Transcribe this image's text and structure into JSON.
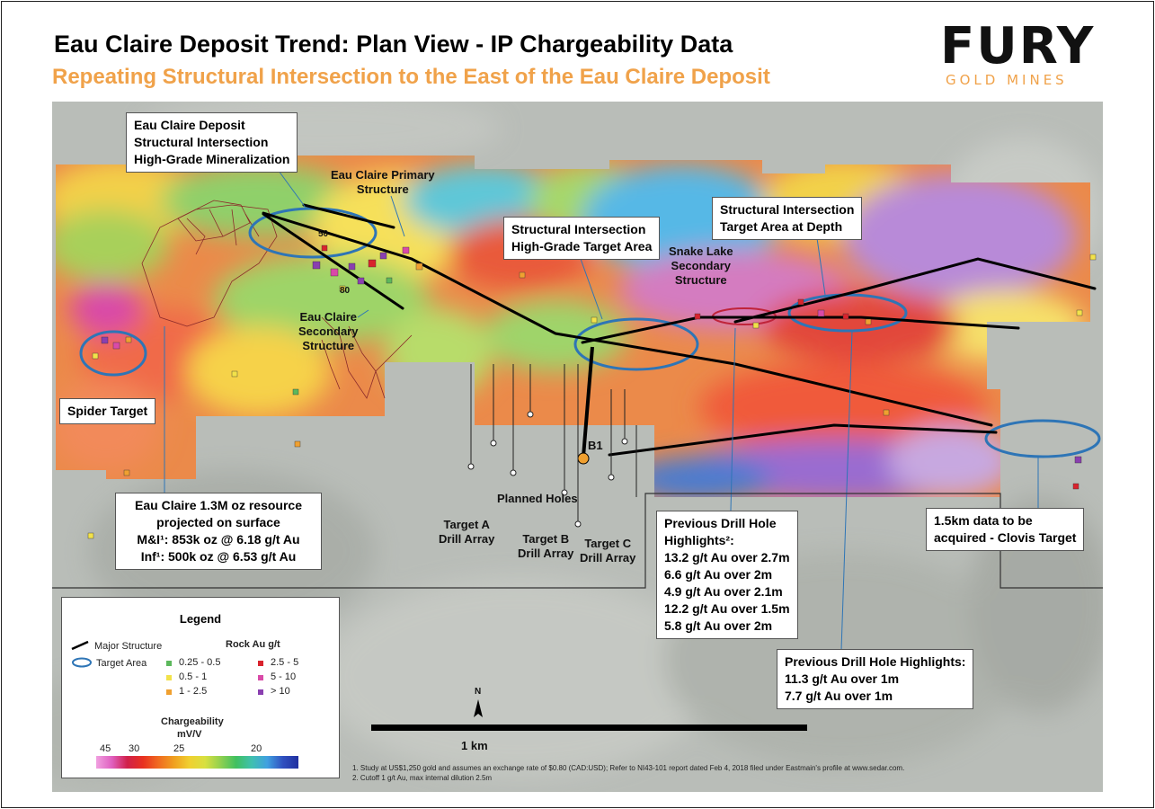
{
  "header": {
    "title": "Eau Claire Deposit Trend: Plan View - IP Chargeability Data",
    "subtitle": "Repeating Structural Intersection to the East of the Eau Claire Deposit"
  },
  "logo": {
    "word": "FURY",
    "sub": "GOLD MINES"
  },
  "callouts": {
    "deposit": [
      "Eau Claire Deposit",
      "Structural Intersection",
      "High-Grade Mineralization"
    ],
    "structural_intersection": [
      "Structural Intersection",
      "High-Grade Target Area"
    ],
    "depth": [
      "Structural Intersection",
      "Target Area at Depth"
    ],
    "spider": "Spider Target",
    "resource": [
      "Eau Claire 1.3M oz resource",
      "projected on surface",
      "M&I¹: 853k oz @ 6.18 g/t Au",
      "Inf¹: 500k oz @ 6.53 g/t Au"
    ],
    "drill1": [
      "Previous Drill Hole",
      "Highlights²:",
      "13.2 g/t Au over 2.7m",
      "6.6 g/t Au over 2m",
      "4.9 g/t Au over 2.1m",
      "12.2 g/t Au over 1.5m",
      "5.8 g/t Au over 2m"
    ],
    "drill2": [
      "Previous Drill Hole Highlights:",
      "11.3 g/t Au over 1m",
      "7.7 g/t Au over 1m"
    ],
    "clovis": [
      "1.5km data to be",
      "acquired - Clovis Target"
    ]
  },
  "labels": {
    "primary_structure": [
      "Eau Claire Primary",
      "Structure"
    ],
    "secondary_structure": [
      "Eau Claire",
      "Secondary",
      "Structure"
    ],
    "snake_lake": [
      "Snake Lake",
      "Secondary",
      "Structure"
    ],
    "planned_holes": "Planned Holes",
    "target_a": [
      "Target A",
      "Drill Array"
    ],
    "target_b": [
      "Target B",
      "Drill Array"
    ],
    "target_c": [
      "Target C",
      "Drill Array"
    ],
    "b1": "B1",
    "dip50": "50",
    "dip80": "80",
    "north": "N",
    "scale": "1 km"
  },
  "legend": {
    "title": "Legend",
    "major_structure": "Major Structure",
    "target_area": "Target Area",
    "rock_title": "Rock Au g/t",
    "rock": [
      {
        "label": "0.25 - 0.5",
        "color": "#5cb85c"
      },
      {
        "label": "0.5 - 1",
        "color": "#f2e24a"
      },
      {
        "label": "1 - 2.5",
        "color": "#f0a030"
      },
      {
        "label": "2.5 - 5",
        "color": "#d9232d"
      },
      {
        "label": "5 - 10",
        "color": "#d94aa8"
      },
      {
        "label": "> 10",
        "color": "#8a3fb0"
      }
    ],
    "charge_title": "Chargeability",
    "charge_unit": "mV/V",
    "charge_ticks": [
      "45",
      "30",
      "25",
      "20"
    ]
  },
  "footnotes": [
    "1. Study at US$1,250 gold and assumes an exchange rate of $0.80 (CAD:USD); Refer to NI43-101 report dated Feb 4, 2018 filed under Eastmain's profile at www.sedar.com.",
    "2. Cutoff 1 g/t Au, max internal dilution 2.5m"
  ],
  "colors": {
    "target_outline": "#2e75b6",
    "structure": "#000000",
    "accent": "#f0a24a",
    "basemap": "#b8bcb7"
  }
}
